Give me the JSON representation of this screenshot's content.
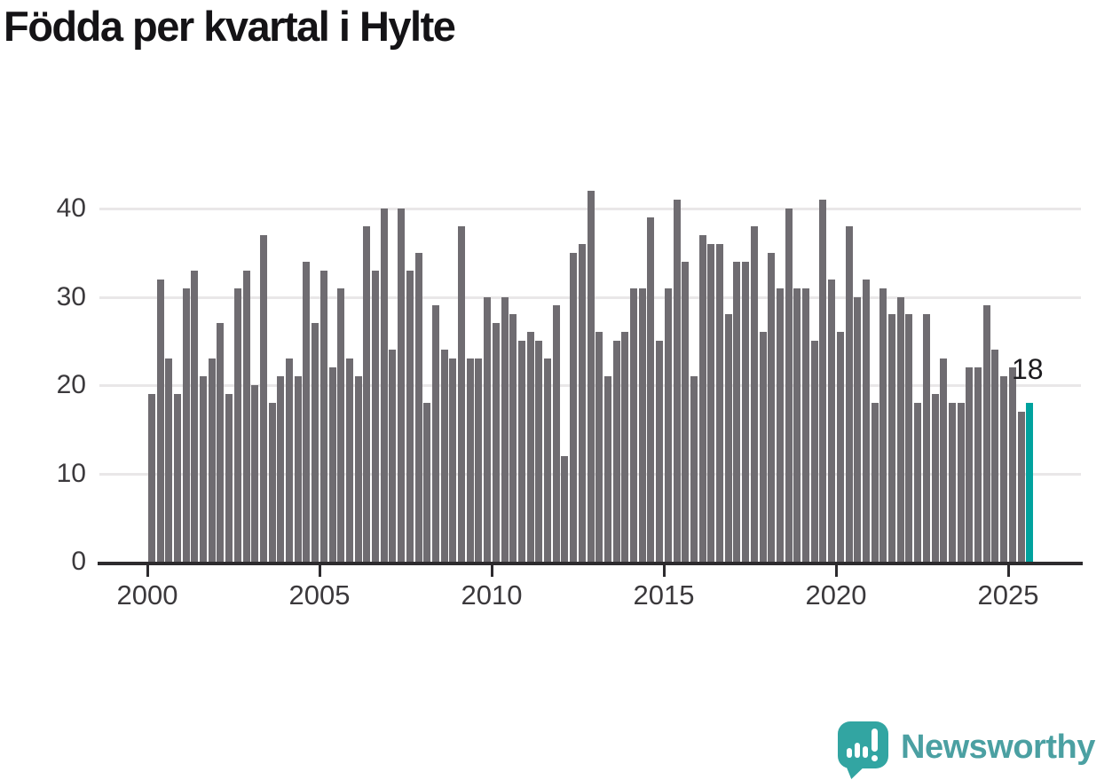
{
  "title": "Födda per kvartal i Hylte",
  "chart_data": {
    "type": "bar",
    "title": "Födda per kvartal i Hylte",
    "frequency": "quarterly",
    "x_start": "2000-Q1",
    "x_end": "2025-Q3",
    "values_by_year": {
      "2000": [
        19,
        32,
        23,
        19
      ],
      "2001": [
        31,
        33,
        21,
        23
      ],
      "2002": [
        27,
        19,
        31,
        33
      ],
      "2003": [
        20,
        37,
        18,
        21
      ],
      "2004": [
        23,
        21,
        34,
        27
      ],
      "2005": [
        33,
        22,
        31,
        23
      ],
      "2006": [
        21,
        38,
        33,
        40
      ],
      "2007": [
        24,
        40,
        33,
        35
      ],
      "2008": [
        18,
        29,
        24,
        23
      ],
      "2009": [
        38,
        23,
        23,
        30
      ],
      "2010": [
        27,
        30,
        28,
        25
      ],
      "2011": [
        26,
        25,
        23,
        29
      ],
      "2012": [
        12,
        35,
        36,
        42
      ],
      "2013": [
        26,
        21,
        25,
        26
      ],
      "2014": [
        31,
        31,
        39,
        25
      ],
      "2015": [
        31,
        41,
        34,
        21
      ],
      "2016": [
        37,
        36,
        36,
        28
      ],
      "2017": [
        34,
        34,
        38,
        26
      ],
      "2018": [
        35,
        31,
        40,
        31
      ],
      "2019": [
        31,
        25,
        41,
        32
      ],
      "2020": [
        26,
        38,
        30,
        32
      ],
      "2021": [
        18,
        31,
        28,
        30
      ],
      "2022": [
        28,
        18,
        28,
        19
      ],
      "2023": [
        23,
        18,
        18,
        22
      ],
      "2024": [
        22,
        29,
        24,
        21
      ],
      "2025": [
        22,
        17,
        18
      ]
    },
    "highlight": {
      "category": "2025-Q3",
      "value": 18,
      "label": "18"
    },
    "x_axis": {
      "tick_years": [
        2000,
        2005,
        2010,
        2015,
        2020,
        2025
      ],
      "tick_labels": [
        "2000",
        "2005",
        "2010",
        "2015",
        "2020",
        "2025"
      ]
    },
    "y_axis": {
      "ticks": [
        0,
        10,
        20,
        30,
        40
      ],
      "tick_labels": [
        "0",
        "10",
        "20",
        "30",
        "40"
      ],
      "range": [
        0,
        43
      ]
    },
    "grid": "horizontal",
    "legend": null,
    "colors": {
      "bar": "#6F6C71",
      "highlight": "#00A29E",
      "gridline": "#E9E7E8",
      "axis": "#2D2B2E",
      "tick_label": "#3B393C",
      "title_text": "#141316",
      "annotation_text": "#1C1B1E"
    }
  },
  "logo": {
    "text": "Newsworthy",
    "icon": "newsworthy-speech-bubble-barchart-icon",
    "text_color": "#4BA0A2",
    "icon_color": "#32A5A2"
  }
}
